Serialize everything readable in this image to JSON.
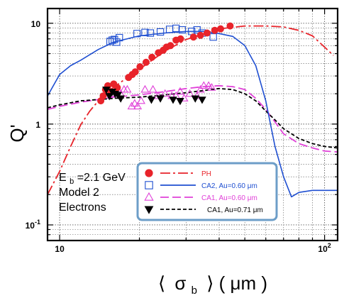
{
  "chart_data": {
    "type": "scatter",
    "x_scale": "log",
    "y_scale": "log",
    "xlim": [
      9,
      112
    ],
    "ylim": [
      0.07,
      14
    ],
    "grid": true,
    "xlabel": "⟨ σb ⟩ ( μm )",
    "xlabel_main": "σ",
    "xlabel_sub": "b",
    "xlabel_left": "⟨",
    "xlabel_right": "⟩ ( μm )",
    "ylabel": "Q'",
    "x_ticks": [
      {
        "value": 10,
        "label": "10"
      },
      {
        "value": 100,
        "label": "10",
        "sup": "2"
      }
    ],
    "y_ticks": [
      {
        "value": 0.1,
        "label": "10",
        "sup": "-1"
      },
      {
        "value": 1,
        "label": "1"
      },
      {
        "value": 10,
        "label": "10"
      }
    ],
    "annotations": [
      "Eb=2.1 GeV",
      "Model 2",
      "Electrons"
    ],
    "annotation_parts": {
      "e": "E",
      "b_sub": "b",
      "gev": "=2.1 GeV"
    },
    "legend_position": "center-bottom",
    "series": [
      {
        "name": "PH",
        "color": "#e8232a",
        "marker": "filled-circle",
        "line_style": "dash-dot",
        "points": [
          [
            14.3,
            1.7
          ],
          [
            14.6,
            1.9
          ],
          [
            14.9,
            2.2
          ],
          [
            15.2,
            2.4
          ],
          [
            15.6,
            2.1
          ],
          [
            16.0,
            2.5
          ],
          [
            16.5,
            2.3
          ],
          [
            18.2,
            2.9
          ],
          [
            18.8,
            3.1
          ],
          [
            19.3,
            3.3
          ],
          [
            20.1,
            3.7
          ],
          [
            21.2,
            4.1
          ],
          [
            22.3,
            4.6
          ],
          [
            23.6,
            5.1
          ],
          [
            24.6,
            5.4
          ],
          [
            25.3,
            5.8
          ],
          [
            26.2,
            6.0
          ],
          [
            27.5,
            6.8
          ],
          [
            28.6,
            7.0
          ],
          [
            32.0,
            7.3
          ],
          [
            34.0,
            7.6
          ],
          [
            36.0,
            8.0
          ],
          [
            38.5,
            8.5
          ],
          [
            40.5,
            8.8
          ],
          [
            44.0,
            9.4
          ]
        ],
        "curve": [
          [
            9,
            0.2
          ],
          [
            10,
            0.34
          ],
          [
            11,
            0.6
          ],
          [
            12,
            0.98
          ],
          [
            13,
            1.35
          ],
          [
            14,
            1.7
          ],
          [
            15,
            2.05
          ],
          [
            17,
            2.6
          ],
          [
            20,
            3.5
          ],
          [
            25,
            5.3
          ],
          [
            30,
            6.9
          ],
          [
            40,
            8.8
          ],
          [
            50,
            9.4
          ],
          [
            60,
            9.4
          ],
          [
            70,
            9.2
          ],
          [
            80,
            8.5
          ],
          [
            90,
            7.5
          ],
          [
            100,
            5.8
          ],
          [
            108,
            4.8
          ]
        ]
      },
      {
        "name": "CA2, Au=0.60 μm",
        "color": "#1f4fd1",
        "marker": "open-square",
        "line_style": "solid",
        "points": [
          [
            15.5,
            6.6
          ],
          [
            15.8,
            6.8
          ],
          [
            16.1,
            6.9
          ],
          [
            16.4,
            6.5
          ],
          [
            16.8,
            7.2
          ],
          [
            19.6,
            7.9
          ],
          [
            21.0,
            8.1
          ],
          [
            22.0,
            8.0
          ],
          [
            24.0,
            8.2
          ],
          [
            26.0,
            8.7
          ],
          [
            27.5,
            8.9
          ],
          [
            29.0,
            8.6
          ],
          [
            31.5,
            8.3
          ],
          [
            33.0,
            8.6
          ],
          [
            34.5,
            8.0
          ],
          [
            38.0,
            7.3
          ]
        ],
        "curve": [
          [
            9,
            1.9
          ],
          [
            10,
            3.1
          ],
          [
            11,
            3.8
          ],
          [
            12,
            4.3
          ],
          [
            14,
            5.5
          ],
          [
            16,
            6.5
          ],
          [
            20,
            7.5
          ],
          [
            25,
            8.0
          ],
          [
            30,
            8.3
          ],
          [
            35,
            8.3
          ],
          [
            40,
            7.9
          ],
          [
            45,
            7.4
          ],
          [
            50,
            6.0
          ],
          [
            55,
            3.8
          ],
          [
            60,
            1.7
          ],
          [
            65,
            0.6
          ],
          [
            70,
            0.3
          ],
          [
            75,
            0.19
          ],
          [
            80,
            0.21
          ],
          [
            90,
            0.22
          ],
          [
            112,
            0.22
          ]
        ]
      },
      {
        "name": "CA1, Au=0.60 μm",
        "color": "#e040d8",
        "marker": "open-triangle-up",
        "line_style": "long-dash",
        "points": [
          [
            15.4,
            2.1
          ],
          [
            16.1,
            2.0
          ],
          [
            17.0,
            2.0
          ],
          [
            17.5,
            2.2
          ],
          [
            18.0,
            2.2
          ],
          [
            18.7,
            1.5
          ],
          [
            19.2,
            1.6
          ],
          [
            19.7,
            1.5
          ],
          [
            20.3,
            1.7
          ],
          [
            21.0,
            2.2
          ],
          [
            22.5,
            2.2
          ],
          [
            23.5,
            1.9
          ],
          [
            25.0,
            2.0
          ],
          [
            26.5,
            1.9
          ],
          [
            27.5,
            1.9
          ],
          [
            28.5,
            2.1
          ],
          [
            29.5,
            1.8
          ],
          [
            31.0,
            2.0
          ],
          [
            33.0,
            1.9
          ],
          [
            34.0,
            2.2
          ],
          [
            35.0,
            2.4
          ],
          [
            36.5,
            2.4
          ],
          [
            37.5,
            2.3
          ]
        ],
        "curve": [
          [
            9,
            1.4
          ],
          [
            10,
            1.5
          ],
          [
            12,
            1.65
          ],
          [
            14,
            1.75
          ],
          [
            16,
            1.85
          ],
          [
            20,
            1.95
          ],
          [
            25,
            2.1
          ],
          [
            30,
            2.25
          ],
          [
            35,
            2.35
          ],
          [
            40,
            2.4
          ],
          [
            45,
            2.35
          ],
          [
            50,
            2.2
          ],
          [
            55,
            1.8
          ],
          [
            60,
            1.4
          ],
          [
            65,
            1.05
          ],
          [
            70,
            0.8
          ],
          [
            80,
            0.64
          ],
          [
            90,
            0.58
          ],
          [
            100,
            0.54
          ],
          [
            112,
            0.53
          ]
        ]
      },
      {
        "name": "CA1, Au=0.71 μm",
        "color": "#000000",
        "marker": "filled-triangle-down",
        "line_style": "short-dash",
        "points": [
          [
            15.0,
            2.2
          ],
          [
            15.4,
            1.9
          ],
          [
            15.8,
            2.1
          ],
          [
            16.2,
            2.0
          ],
          [
            16.6,
            1.95
          ],
          [
            17.0,
            1.8
          ],
          [
            22.2,
            1.75
          ],
          [
            24.0,
            1.8
          ],
          [
            26.8,
            1.75
          ],
          [
            28.5,
            1.7
          ],
          [
            32.5,
            1.8
          ],
          [
            34.5,
            1.75
          ]
        ],
        "curve": [
          [
            9,
            1.45
          ],
          [
            10,
            1.55
          ],
          [
            12,
            1.7
          ],
          [
            14,
            1.75
          ],
          [
            16,
            1.8
          ],
          [
            20,
            1.85
          ],
          [
            25,
            1.95
          ],
          [
            30,
            2.05
          ],
          [
            35,
            2.15
          ],
          [
            40,
            2.25
          ],
          [
            45,
            2.2
          ],
          [
            50,
            2.0
          ],
          [
            55,
            1.7
          ],
          [
            60,
            1.35
          ],
          [
            65,
            1.1
          ],
          [
            70,
            0.9
          ],
          [
            80,
            0.72
          ],
          [
            90,
            0.64
          ],
          [
            100,
            0.6
          ],
          [
            112,
            0.58
          ]
        ]
      }
    ]
  }
}
